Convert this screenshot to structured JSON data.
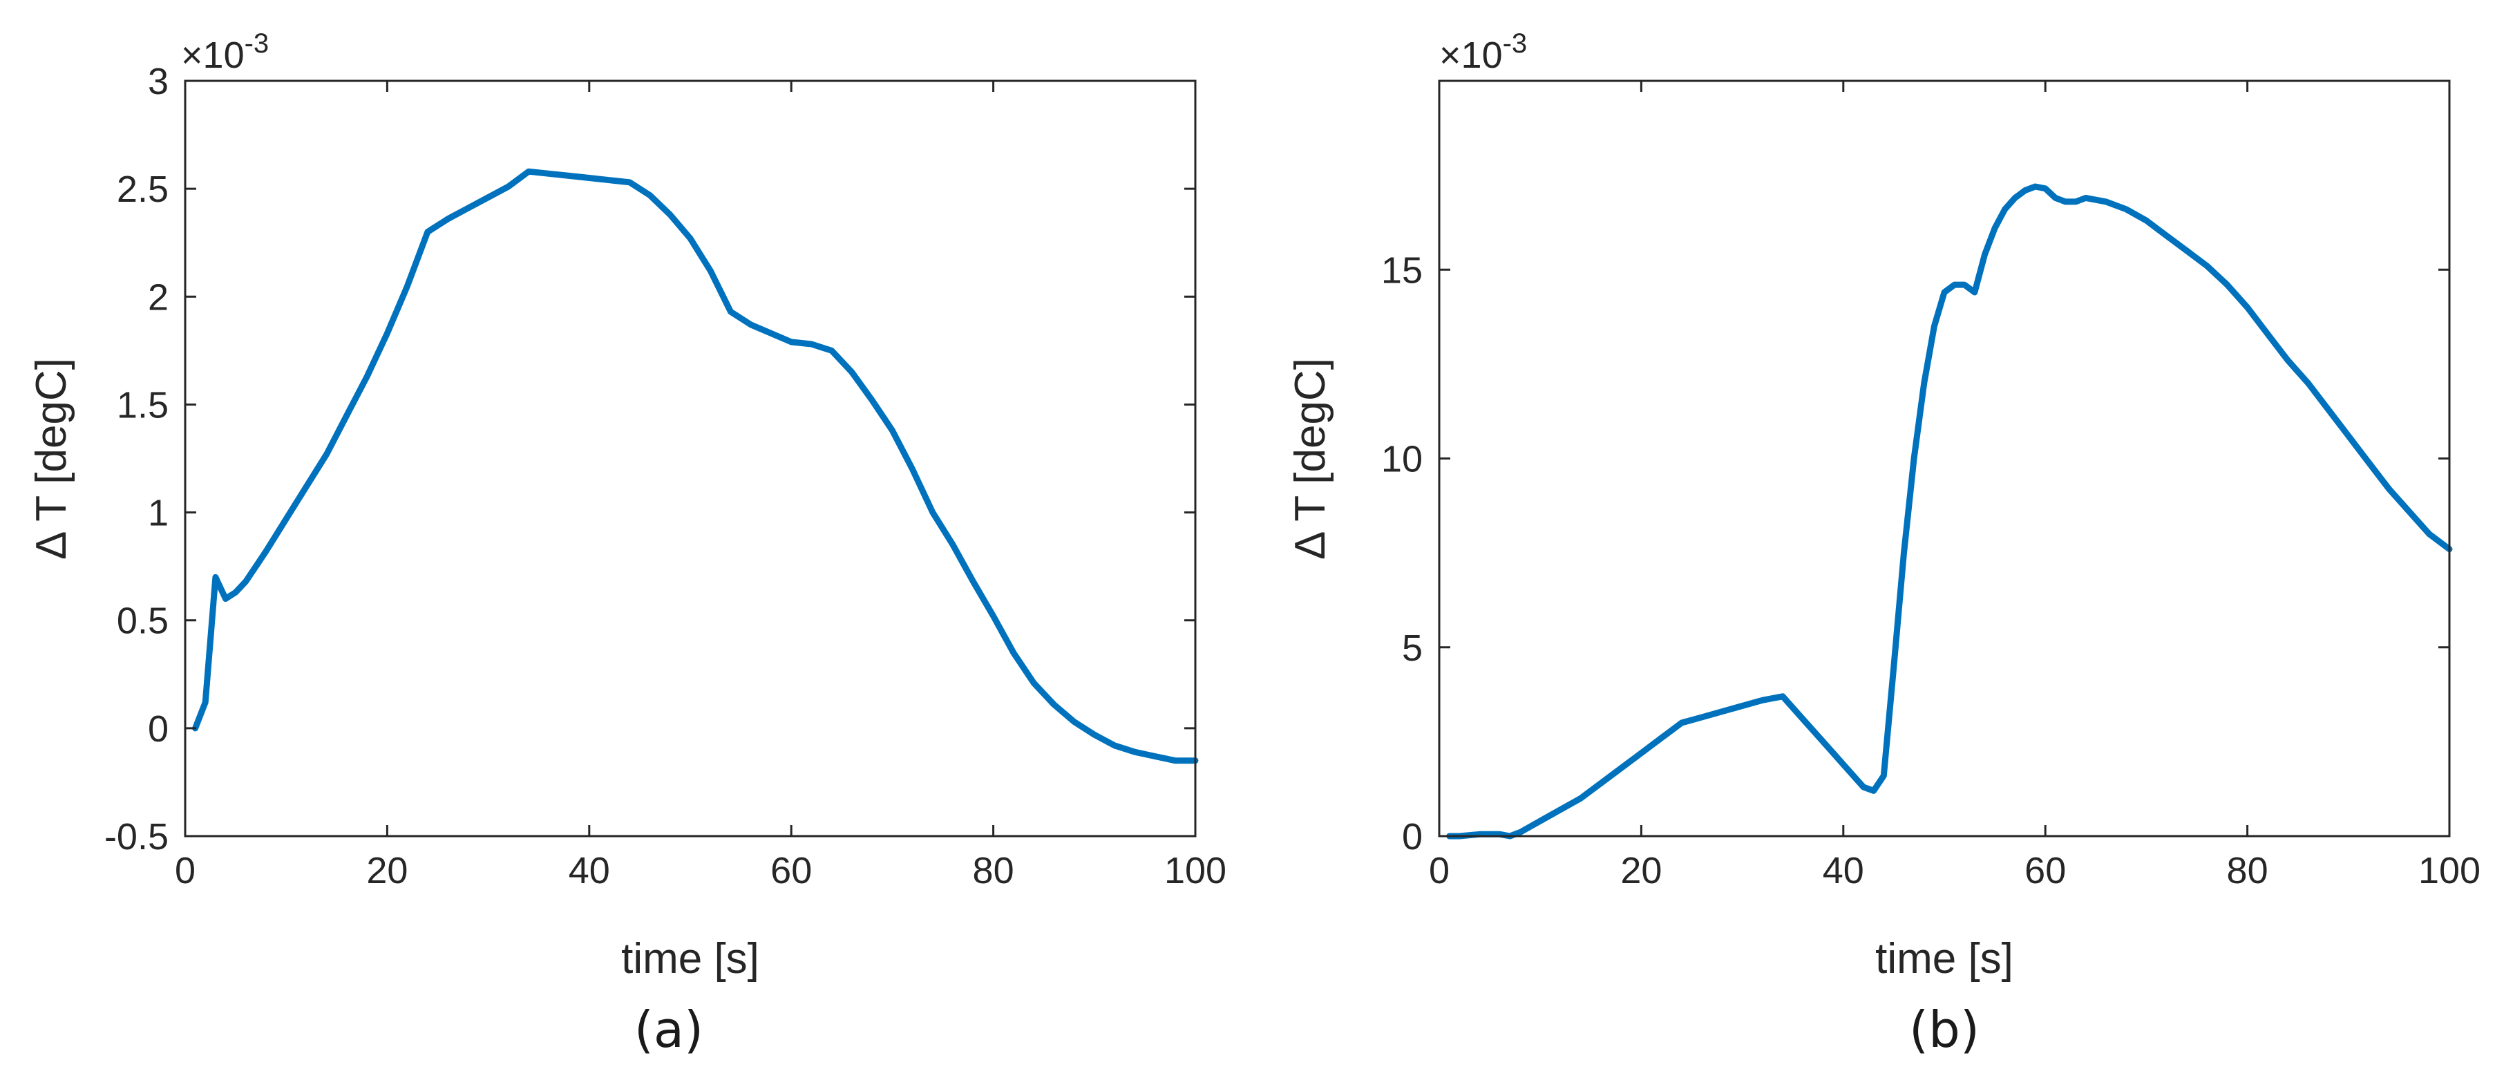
{
  "chart_data": [
    {
      "type": "line",
      "caption": "(a)",
      "xlabel": "time [s]",
      "ylabel": "Δ T [degC]",
      "exponent_label": "×10",
      "exponent_power": "-3",
      "xlim": [
        0,
        100
      ],
      "ylim": [
        -0.5,
        3
      ],
      "xticks": [
        0,
        20,
        40,
        60,
        80,
        100
      ],
      "xtick_labels": [
        "0",
        "20",
        "40",
        "60",
        "80",
        "100"
      ],
      "yticks": [
        -0.5,
        0,
        0.5,
        1,
        1.5,
        2,
        2.5,
        3
      ],
      "ytick_labels": [
        "-0.5",
        "0",
        "0.5",
        "1",
        "1.5",
        "2",
        "2.5",
        "3"
      ],
      "grid": false,
      "line_color": "#0072BD",
      "x": [
        1,
        2,
        3,
        4,
        5,
        6,
        8,
        10,
        12,
        14,
        16,
        18,
        20,
        22,
        24,
        26,
        28,
        30,
        32,
        34,
        36,
        38,
        40,
        42,
        44,
        46,
        48,
        50,
        52,
        54,
        56,
        58,
        60,
        62,
        64,
        66,
        68,
        70,
        72,
        74,
        76,
        78,
        80,
        82,
        84,
        86,
        88,
        90,
        92,
        94,
        96,
        98,
        100
      ],
      "y": [
        0.0,
        0.12,
        0.7,
        0.6,
        0.63,
        0.68,
        0.82,
        0.97,
        1.12,
        1.27,
        1.45,
        1.63,
        1.83,
        2.05,
        2.3,
        2.36,
        2.41,
        2.46,
        2.51,
        2.58,
        2.57,
        2.56,
        2.55,
        2.54,
        2.53,
        2.47,
        2.38,
        2.27,
        2.12,
        1.93,
        1.87,
        1.83,
        1.79,
        1.78,
        1.75,
        1.65,
        1.52,
        1.38,
        1.2,
        1.0,
        0.85,
        0.68,
        0.52,
        0.35,
        0.21,
        0.11,
        0.03,
        -0.03,
        -0.08,
        -0.11,
        -0.13,
        -0.15,
        -0.15
      ]
    },
    {
      "type": "line",
      "caption": "(b)",
      "xlabel": "time [s]",
      "ylabel": "Δ T [degC]",
      "exponent_label": "×10",
      "exponent_power": "-3",
      "xlim": [
        0,
        100
      ],
      "ylim": [
        0,
        20
      ],
      "xticks": [
        0,
        20,
        40,
        60,
        80,
        100
      ],
      "xtick_labels": [
        "0",
        "20",
        "40",
        "60",
        "80",
        "100"
      ],
      "yticks": [
        0,
        5,
        10,
        15
      ],
      "ytick_labels": [
        "0",
        "5",
        "10",
        "15"
      ],
      "grid": false,
      "line_color": "#0072BD",
      "x": [
        1,
        2,
        4,
        6,
        7,
        8,
        10,
        12,
        14,
        16,
        18,
        20,
        22,
        24,
        26,
        28,
        30,
        32,
        34,
        36,
        38,
        40,
        42,
        43,
        44,
        45,
        46,
        47,
        48,
        49,
        50,
        51,
        52,
        53,
        54,
        55,
        56,
        57,
        58,
        59,
        60,
        61,
        62,
        63,
        64,
        66,
        68,
        70,
        72,
        74,
        76,
        78,
        80,
        82,
        84,
        86,
        88,
        90,
        92,
        94,
        96,
        98,
        100
      ],
      "y": [
        0.0,
        0.0,
        0.05,
        0.05,
        0.0,
        0.1,
        0.4,
        0.7,
        1.0,
        1.4,
        1.8,
        2.2,
        2.6,
        3.0,
        3.15,
        3.3,
        3.45,
        3.6,
        3.7,
        3.1,
        2.5,
        1.9,
        1.3,
        1.2,
        1.6,
        4.5,
        7.5,
        10.0,
        12.0,
        13.5,
        14.4,
        14.6,
        14.6,
        14.4,
        15.4,
        16.1,
        16.6,
        16.9,
        17.1,
        17.2,
        17.15,
        16.9,
        16.8,
        16.8,
        16.9,
        16.8,
        16.6,
        16.3,
        15.9,
        15.5,
        15.1,
        14.6,
        14.0,
        13.3,
        12.6,
        12.0,
        11.3,
        10.6,
        9.9,
        9.2,
        8.6,
        8.0,
        7.6
      ]
    }
  ]
}
